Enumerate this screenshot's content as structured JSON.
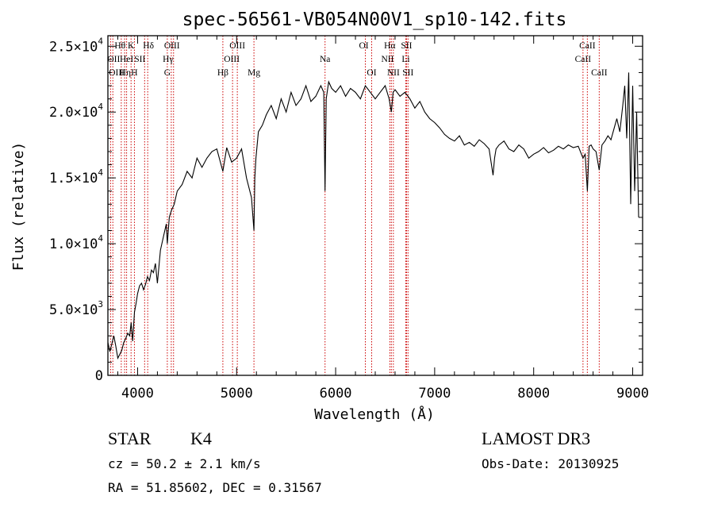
{
  "chart_data": {
    "type": "line",
    "title": "spec-56561-VB054N00V1_sp10-142.fits",
    "xlabel": "Wavelength (Å)",
    "ylabel": "Flux (relative)",
    "xlim": [
      3700,
      9100
    ],
    "ylim": [
      0,
      25800
    ],
    "x_ticks": [
      4000,
      5000,
      6000,
      7000,
      8000,
      9000
    ],
    "x_tick_labels": [
      "4000",
      "5000",
      "6000",
      "7000",
      "8000",
      "9000"
    ],
    "y_ticks": [
      0,
      5000,
      10000,
      15000,
      20000,
      25000
    ],
    "y_tick_labels": [
      {
        "mant": "0",
        "exp": ""
      },
      {
        "mant": "5.0×10",
        "exp": "3"
      },
      {
        "mant": "1.0×10",
        "exp": "4"
      },
      {
        "mant": "1.5×10",
        "exp": "4"
      },
      {
        "mant": "2.0×10",
        "exp": "4"
      },
      {
        "mant": "2.5×10",
        "exp": "4"
      }
    ],
    "spectrum": {
      "x": [
        3700,
        3720,
        3740,
        3760,
        3780,
        3800,
        3820,
        3840,
        3860,
        3880,
        3900,
        3920,
        3935,
        3950,
        3968,
        3985,
        4000,
        4020,
        4040,
        4060,
        4080,
        4100,
        4120,
        4140,
        4160,
        4180,
        4200,
        4230,
        4260,
        4290,
        4300,
        4320,
        4340,
        4370,
        4400,
        4450,
        4500,
        4550,
        4600,
        4650,
        4700,
        4750,
        4800,
        4861,
        4900,
        4950,
        5000,
        5050,
        5100,
        5150,
        5175,
        5184,
        5195,
        5220,
        5260,
        5300,
        5350,
        5400,
        5450,
        5500,
        5550,
        5600,
        5650,
        5700,
        5750,
        5800,
        5850,
        5880,
        5893,
        5905,
        5930,
        5960,
        6000,
        6050,
        6100,
        6150,
        6200,
        6250,
        6300,
        6350,
        6400,
        6450,
        6500,
        6540,
        6563,
        6580,
        6600,
        6650,
        6700,
        6750,
        6800,
        6850,
        6900,
        6950,
        7000,
        7050,
        7100,
        7150,
        7200,
        7250,
        7300,
        7350,
        7400,
        7450,
        7500,
        7550,
        7590,
        7605,
        7620,
        7650,
        7700,
        7750,
        7800,
        7850,
        7900,
        7950,
        8000,
        8050,
        8100,
        8150,
        8200,
        8250,
        8300,
        8350,
        8400,
        8450,
        8498,
        8520,
        8542,
        8560,
        8580,
        8600,
        8630,
        8662,
        8690,
        8720,
        8750,
        8780,
        8810,
        8840,
        8870,
        8900,
        8920,
        8940,
        8960,
        8980,
        9000,
        9020,
        9040,
        9060
      ],
      "y": [
        2500,
        1800,
        2400,
        3000,
        2200,
        1300,
        1600,
        1900,
        2500,
        2800,
        3200,
        3000,
        4000,
        2600,
        4800,
        5500,
        6200,
        6800,
        7000,
        6500,
        6900,
        7500,
        7200,
        8000,
        7800,
        8500,
        7000,
        9500,
        10500,
        11500,
        10000,
        12000,
        12500,
        13000,
        14000,
        14500,
        15500,
        15000,
        16500,
        15800,
        16500,
        17000,
        17200,
        15500,
        17300,
        16200,
        16500,
        17200,
        15000,
        13500,
        11000,
        15000,
        16500,
        18500,
        19000,
        19800,
        20500,
        19500,
        21000,
        20000,
        21500,
        20500,
        21000,
        22000,
        20800,
        21200,
        22000,
        21500,
        14000,
        21000,
        22300,
        21800,
        21500,
        22000,
        21200,
        21800,
        21500,
        21000,
        22000,
        21500,
        21000,
        21500,
        22000,
        21000,
        20000,
        21500,
        21700,
        21200,
        21500,
        21000,
        20300,
        20800,
        20000,
        19500,
        19200,
        18800,
        18300,
        18000,
        17800,
        18200,
        17500,
        17700,
        17400,
        17900,
        17600,
        17200,
        15200,
        16500,
        17200,
        17500,
        17800,
        17200,
        17000,
        17500,
        17200,
        16500,
        16800,
        17000,
        17300,
        16900,
        17100,
        17400,
        17200,
        17500,
        17300,
        17400,
        16500,
        16800,
        14000,
        17400,
        17500,
        17200,
        17000,
        15600,
        17500,
        17800,
        18200,
        17900,
        18700,
        19500,
        18500,
        20500,
        22000,
        18000,
        23000,
        13000,
        22000,
        14000,
        20000,
        12000
      ]
    },
    "lines": [
      {
        "w": 3727,
        "label": "OII",
        "tier": 2,
        "dx": 4
      },
      {
        "w": 3750,
        "label": "Hθ",
        "tier": 1,
        "dx": 9
      },
      {
        "w": 3835,
        "label": "Hη",
        "tier": 3,
        "dx": 5
      },
      {
        "w": 3869,
        "label": "OIII",
        "tier": 3,
        "dx": -10
      },
      {
        "w": 3889,
        "label": "HeI",
        "tier": 2,
        "dx": 0
      },
      {
        "w": 3934,
        "label": "K",
        "tier": 1,
        "dx": 0
      },
      {
        "w": 3968,
        "label": "H",
        "tier": 3,
        "dx": 0
      },
      {
        "w": 4071,
        "label": "SII",
        "tier": 2,
        "dx": -6
      },
      {
        "w": 4102,
        "label": "Hδ",
        "tier": 1,
        "dx": 1
      },
      {
        "w": 4300,
        "label": "G",
        "tier": 3,
        "dx": 0
      },
      {
        "w": 4340,
        "label": "Hγ",
        "tier": 2,
        "dx": -4
      },
      {
        "w": 4363,
        "label": "OIII",
        "tier": 1,
        "dx": -2
      },
      {
        "w": 4861,
        "label": "Hβ",
        "tier": 3,
        "dx": 0
      },
      {
        "w": 4959,
        "label": "OIII",
        "tier": 2,
        "dx": -1
      },
      {
        "w": 5007,
        "label": "OIII",
        "tier": 1,
        "dx": 0
      },
      {
        "w": 5175,
        "label": "Mg",
        "tier": 3,
        "dx": 0
      },
      {
        "w": 5893,
        "label": "Na",
        "tier": 2,
        "dx": 0
      },
      {
        "w": 6300,
        "label": "OI",
        "tier": 1,
        "dx": -2
      },
      {
        "w": 6364,
        "label": "OI",
        "tier": 3,
        "dx": 0
      },
      {
        "w": 6548,
        "label": "NII",
        "tier": 2,
        "dx": -3
      },
      {
        "w": 6563,
        "label": "Hα",
        "tier": 1,
        "dx": -2
      },
      {
        "w": 6583,
        "label": "NII",
        "tier": 3,
        "dx": 0
      },
      {
        "w": 6708,
        "label": "Li",
        "tier": 2,
        "dx": 0
      },
      {
        "w": 6716,
        "label": "SII",
        "tier": 1,
        "dx": 0
      },
      {
        "w": 6731,
        "label": "SII",
        "tier": 3,
        "dx": 0
      },
      {
        "w": 8498,
        "label": "CaII",
        "tier": 2,
        "dx": 0
      },
      {
        "w": 8542,
        "label": "CaII",
        "tier": 1,
        "dx": 0
      },
      {
        "w": 8662,
        "label": "CaII",
        "tier": 3,
        "dx": 0
      }
    ]
  },
  "footer": {
    "class": "STAR",
    "subclass": "K4",
    "survey": "LAMOST DR3",
    "cz": "cz = 50.2 ± 2.1 km/s",
    "obs_date": "Obs-Date: 20130925",
    "radec": "RA =  51.85602, DEC =   0.31567"
  }
}
